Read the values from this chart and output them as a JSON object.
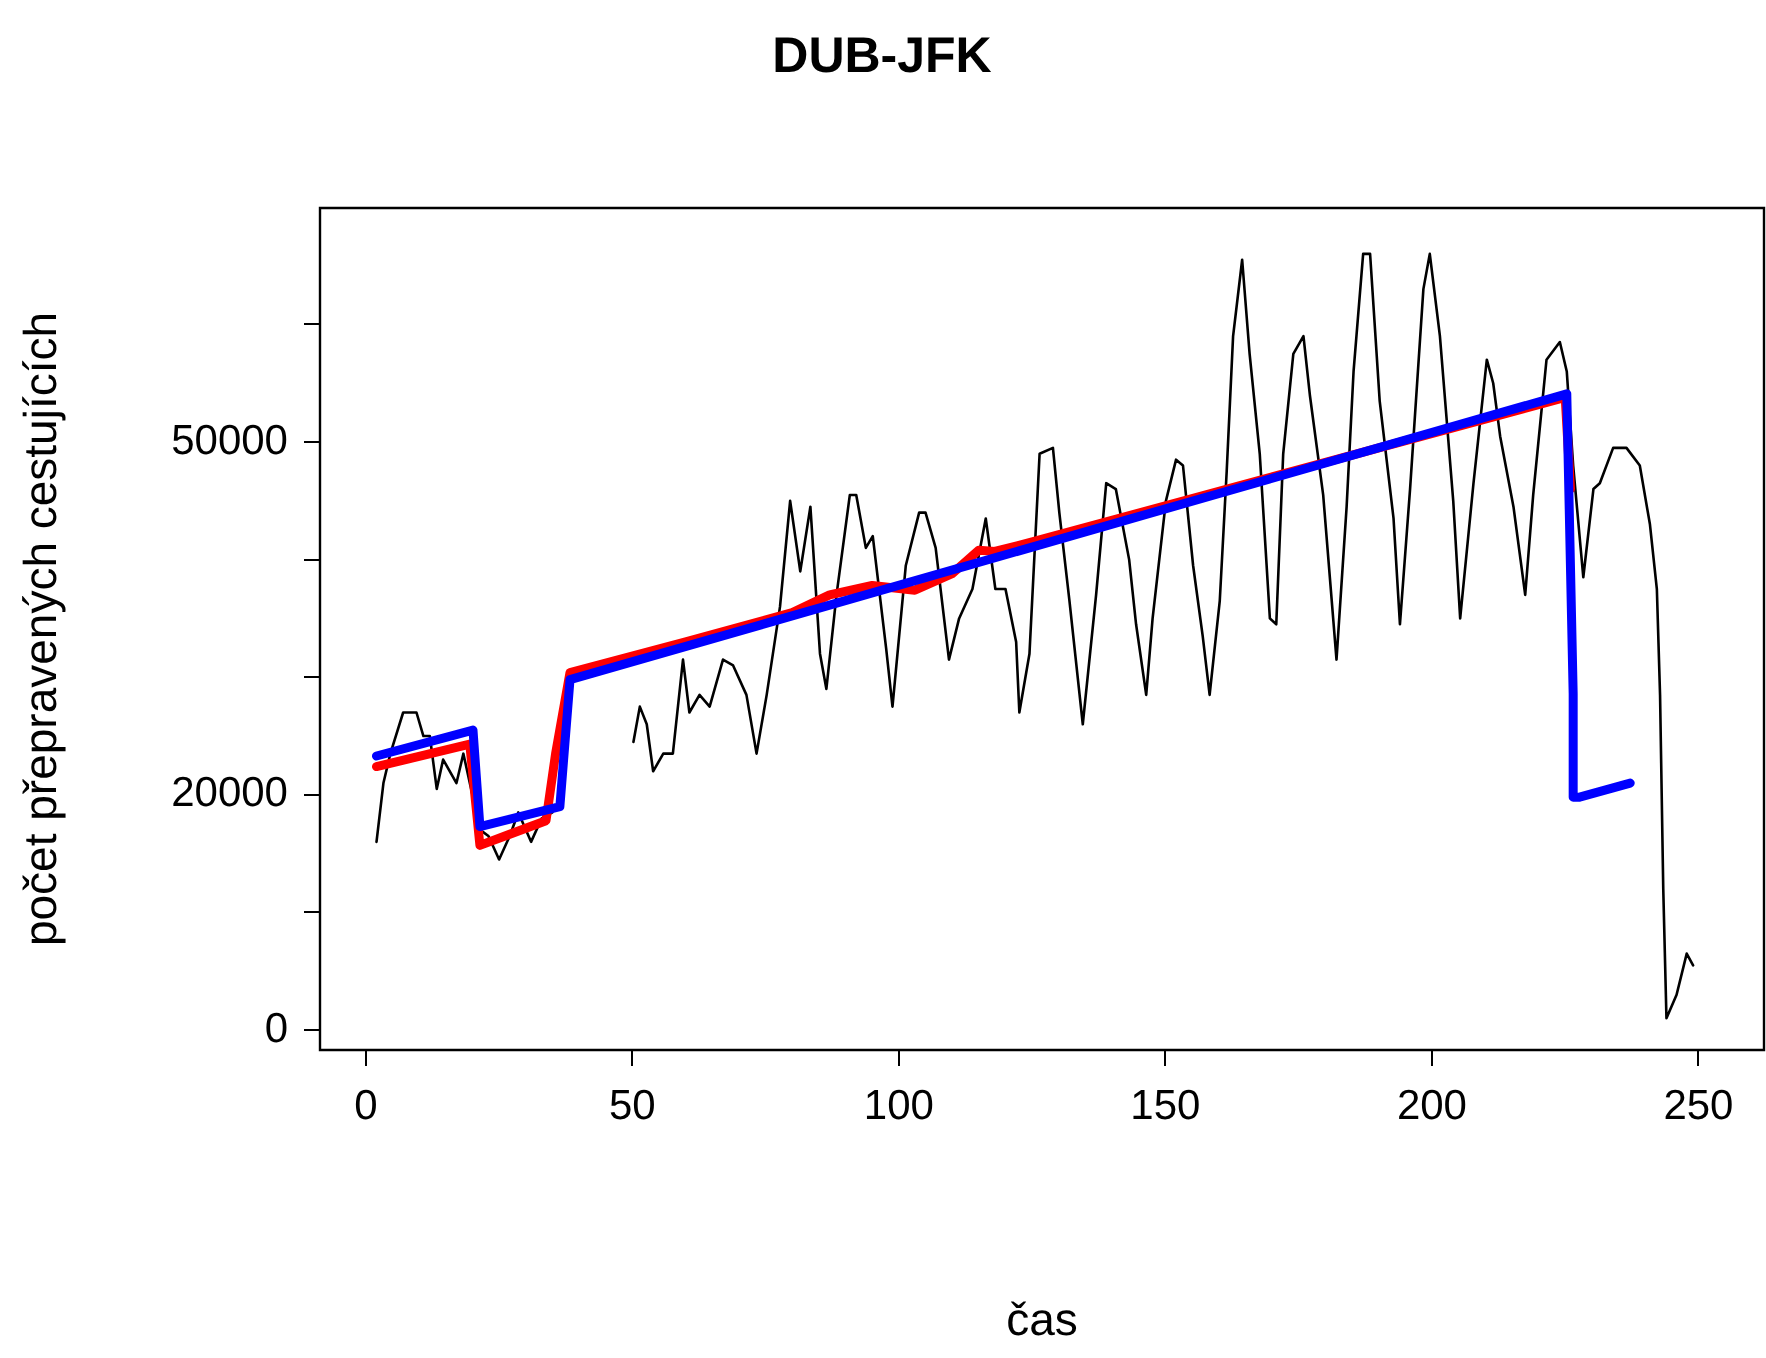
{
  "chart_data": {
    "type": "line",
    "title": "DUB-JFK",
    "xlabel": "čas",
    "ylabel": "počet přepravených cestujících",
    "xlim": [
      -8.6,
      262.3
    ],
    "xticks": [
      0,
      50,
      100,
      150,
      200,
      250
    ],
    "ylim": [
      -1700,
      69900
    ],
    "yticks": [
      0,
      {
        "value": 10000,
        "label": null
      },
      20000,
      {
        "value": 30000,
        "label": null
      },
      {
        "value": 40000,
        "label": null
      },
      50000,
      {
        "value": 60000,
        "label": null
      }
    ],
    "grid": false,
    "legend": false,
    "marker": "none",
    "line_style": "solid",
    "series": [
      {
        "color": "#000000",
        "x": [
          2,
          3.3,
          4.6,
          7,
          9.5,
          10.8,
          12,
          13.3,
          14.5,
          17,
          18.3,
          19.5,
          21.5,
          23,
          25,
          27,
          28.6,
          31,
          33,
          35,
          42,
          50.2,
          51.4,
          52.7,
          53.9,
          55.8,
          57.6,
          59.5,
          60.7,
          62.6,
          64.5,
          67,
          68.9,
          71.4,
          73.3,
          75.2,
          77.7,
          79.6,
          81.5,
          83.4,
          85.2,
          86.4,
          88.3,
          90.8,
          92,
          93.8,
          95.1,
          97.6,
          98.8,
          101.3,
          103.8,
          105,
          106.9,
          109.4,
          111.3,
          113.8,
          116.3,
          118.1,
          120,
          122,
          122.6,
          124.5,
          126.4,
          128.9,
          130.1,
          132,
          134.5,
          137,
          138.9,
          140.7,
          143.2,
          144.5,
          146.4,
          147.6,
          150.1,
          152,
          153.3,
          155.2,
          157,
          158.3,
          160.2,
          161.5,
          162.7,
          164.4,
          165.8,
          167.7,
          169.6,
          170.8,
          172.1,
          174,
          175.9,
          177.1,
          179.6,
          182.1,
          184,
          185.3,
          187.1,
          188.4,
          190.2,
          192.8,
          194,
          195.9,
          198.4,
          199.6,
          201.5,
          204,
          205.3,
          207.8,
          210.3,
          211.5,
          212.8,
          215.3,
          217.5,
          219,
          221.5,
          224,
          225.3,
          226.5,
          228.4,
          230.3,
          231.5,
          234,
          236.5,
          239,
          240.9,
          242.2,
          242.8,
          243.4,
          244,
          245.9,
          247.8,
          249
        ],
        "values": [
          16000,
          21000,
          23500,
          27000,
          27000,
          25000,
          25000,
          20500,
          23000,
          21000,
          23500,
          21000,
          17000,
          16500,
          14500,
          16500,
          18500,
          16000,
          18000,
          18500,
          null,
          24500,
          27500,
          26000,
          22000,
          23500,
          23500,
          31500,
          27000,
          28500,
          27500,
          31500,
          31000,
          28500,
          23500,
          28500,
          36000,
          45000,
          39000,
          44500,
          32000,
          29000,
          37000,
          45500,
          45500,
          41000,
          42000,
          32500,
          27500,
          39500,
          44000,
          44000,
          41000,
          31500,
          35000,
          37500,
          43500,
          37500,
          37500,
          33000,
          27000,
          32000,
          49000,
          49500,
          44000,
          36500,
          26000,
          37000,
          46500,
          46000,
          40000,
          34500,
          28500,
          35000,
          45000,
          48500,
          48000,
          39500,
          33500,
          28500,
          36500,
          47500,
          59000,
          65500,
          57500,
          49000,
          35000,
          34500,
          49000,
          57500,
          59000,
          54000,
          45500,
          31500,
          44500,
          56000,
          66000,
          66000,
          53500,
          43500,
          34500,
          46000,
          63000,
          66000,
          59000,
          45000,
          35000,
          46500,
          57000,
          55000,
          50500,
          44500,
          37000,
          45500,
          57000,
          58500,
          56000,
          48000,
          38500,
          46000,
          46500,
          49500,
          49500,
          48000,
          43000,
          37500,
          28500,
          12000,
          1000,
          3000,
          6500,
          5500
        ]
      },
      {
        "color": "#ff0000",
        "x": [
          2,
          19.5,
          21.4,
          33.8,
          35.6,
          38.3,
          60,
          80,
          87,
          95,
          103,
          110,
          115,
          118,
          125,
          225,
          226
        ],
        "values": [
          22400,
          24300,
          15700,
          17800,
          23500,
          30400,
          33000,
          35500,
          37000,
          37800,
          37400,
          38800,
          40800,
          40700,
          41500,
          53800,
          46000
        ]
      },
      {
        "color": "#0000ff",
        "x": [
          2,
          20.1,
          21.4,
          36.4,
          38.3,
          225.3,
          226.5,
          226.5,
          227.7,
          237.2
        ],
        "values": [
          23300,
          25500,
          17300,
          19000,
          29800,
          54100,
          28600,
          19800,
          19800,
          21000
        ]
      }
    ]
  }
}
